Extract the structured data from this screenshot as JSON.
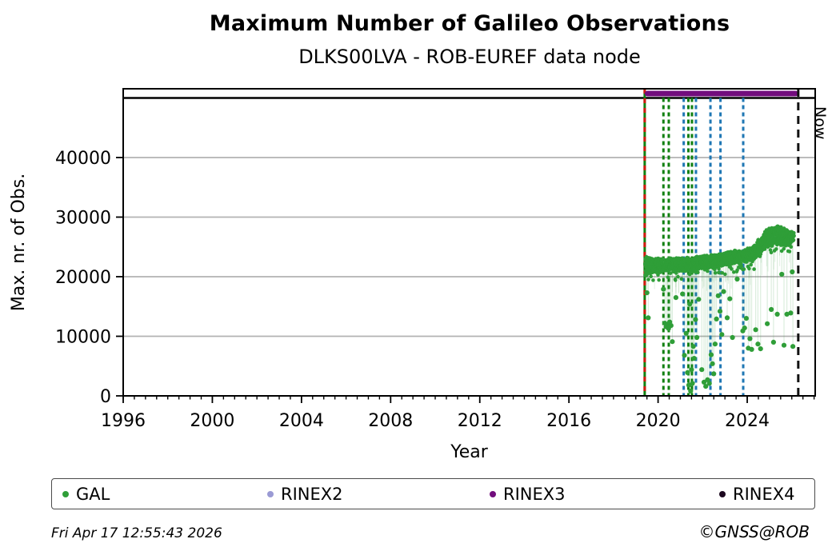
{
  "title": "Maximum Number of Galileo Observations",
  "subtitle": "DLKS00LVA - ROB-EUREF data node",
  "footer": {
    "generated": "Fri Apr 17 12:55:43 2026",
    "credit": "©GNSS@ROB"
  },
  "legend": [
    {
      "label": "GAL",
      "color": "#2f9e38"
    },
    {
      "label": "RINEX2",
      "color": "#9a9ad4"
    },
    {
      "label": "RINEX3",
      "color": "#720d7d"
    },
    {
      "label": "RINEX4",
      "color": "#1c081f"
    }
  ],
  "chart_data": {
    "type": "scatter",
    "title": "Maximum Number of Galileo Observations",
    "subtitle": "DLKS00LVA - ROB-EUREF data node",
    "xlabel": "Year",
    "ylabel": "Max. nr. of Obs.",
    "xlim": [
      1996,
      2027.05
    ],
    "ylim": [
      0,
      51540
    ],
    "xticks_major": [
      1996,
      2000,
      2004,
      2008,
      2012,
      2016,
      2020,
      2024
    ],
    "xtick_minor_step": 0.5,
    "yticks": [
      0,
      10000,
      20000,
      30000,
      40000
    ],
    "grid": true,
    "grid_color": "#b3b3b3",
    "top_line_value": 50000,
    "now": {
      "year": 2026.29,
      "label": "Now"
    },
    "rinex3_bar": {
      "start": 2019.4,
      "end": 2026.29,
      "color": "#720d7d"
    },
    "events": [
      {
        "year": 2019.4,
        "color": "#118011",
        "style": "solid",
        "from_top": true,
        "name": "gal-data-start-line"
      },
      {
        "year": 2019.4,
        "color": "#d1190f",
        "style": "dashed",
        "from_top": true,
        "dash": "6,6",
        "name": "rinex3-start-line"
      },
      {
        "year": 2020.24,
        "color": "#118011",
        "style": "dashed",
        "name": "event-green-1"
      },
      {
        "year": 2020.48,
        "color": "#118011",
        "style": "dashed",
        "name": "event-green-2"
      },
      {
        "year": 2021.15,
        "color": "#1f77b4",
        "style": "dashed",
        "name": "event-blue-1"
      },
      {
        "year": 2021.36,
        "color": "#118011",
        "style": "dashed",
        "name": "event-green-3"
      },
      {
        "year": 2021.52,
        "color": "#118011",
        "style": "dashed",
        "name": "event-green-4"
      },
      {
        "year": 2021.7,
        "color": "#1f77b4",
        "style": "dashed",
        "name": "event-blue-2"
      },
      {
        "year": 2022.35,
        "color": "#1f77b4",
        "style": "dashed",
        "name": "event-blue-3"
      },
      {
        "year": 2022.8,
        "color": "#1f77b4",
        "style": "dashed",
        "name": "event-blue-4"
      },
      {
        "year": 2023.82,
        "color": "#1f77b4",
        "style": "dashed",
        "name": "event-blue-5"
      }
    ],
    "series": [
      {
        "name": "GAL",
        "color": "#2f9e38"
      }
    ],
    "band_span": [
      2019.42,
      2026.1
    ],
    "band_envelope": [
      [
        2019.42,
        19900,
        23500
      ],
      [
        2019.55,
        20400,
        23200
      ],
      [
        2019.75,
        20700,
        23100
      ],
      [
        2020.0,
        20600,
        23200
      ],
      [
        2020.2,
        20800,
        23000
      ],
      [
        2020.35,
        21000,
        22900
      ],
      [
        2020.55,
        20900,
        23100
      ],
      [
        2020.8,
        20700,
        23200
      ],
      [
        2021.0,
        21000,
        23100
      ],
      [
        2021.25,
        20900,
        23200
      ],
      [
        2021.5,
        21000,
        23300
      ],
      [
        2021.75,
        21200,
        23400
      ],
      [
        2022.0,
        21300,
        23500
      ],
      [
        2022.25,
        21500,
        23600
      ],
      [
        2022.5,
        21400,
        23700
      ],
      [
        2022.75,
        21700,
        23800
      ],
      [
        2023.0,
        21900,
        24000
      ],
      [
        2023.25,
        22100,
        24200
      ],
      [
        2023.5,
        22300,
        24500
      ],
      [
        2023.7,
        22100,
        24300
      ],
      [
        2023.9,
        22400,
        24600
      ],
      [
        2024.1,
        22600,
        24900
      ],
      [
        2024.3,
        22700,
        25100
      ],
      [
        2024.5,
        23400,
        26300
      ],
      [
        2024.7,
        24200,
        27300
      ],
      [
        2024.9,
        24900,
        28000
      ],
      [
        2025.1,
        25300,
        28300
      ],
      [
        2025.3,
        25600,
        28600
      ],
      [
        2025.5,
        25400,
        28500
      ],
      [
        2025.7,
        25100,
        28100
      ],
      [
        2025.85,
        25300,
        27600
      ],
      [
        2026.0,
        25800,
        27600
      ],
      [
        2026.1,
        26200,
        27400
      ]
    ],
    "outliers": [
      [
        2019.5,
        17300
      ],
      [
        2019.56,
        13100
      ],
      [
        2020.24,
        17900
      ],
      [
        2020.3,
        12200
      ],
      [
        2020.36,
        11600
      ],
      [
        2020.42,
        12000
      ],
      [
        2020.47,
        11300
      ],
      [
        2020.52,
        12400
      ],
      [
        2020.58,
        11800
      ],
      [
        2020.64,
        9100
      ],
      [
        2020.8,
        16500
      ],
      [
        2021.1,
        17100
      ],
      [
        2021.18,
        6800
      ],
      [
        2021.26,
        10500
      ],
      [
        2021.32,
        3900
      ],
      [
        2021.38,
        1800
      ],
      [
        2021.42,
        15400
      ],
      [
        2021.46,
        800
      ],
      [
        2021.5,
        4400
      ],
      [
        2021.54,
        2100
      ],
      [
        2021.58,
        8300
      ],
      [
        2021.62,
        6300
      ],
      [
        2021.68,
        12800
      ],
      [
        2021.74,
        9800
      ],
      [
        2021.82,
        16200
      ],
      [
        2021.96,
        4400
      ],
      [
        2022.06,
        2300
      ],
      [
        2022.14,
        1600
      ],
      [
        2022.22,
        2700
      ],
      [
        2022.3,
        2100
      ],
      [
        2022.38,
        6900
      ],
      [
        2022.44,
        5400
      ],
      [
        2022.5,
        3700
      ],
      [
        2022.56,
        8700
      ],
      [
        2022.62,
        12900
      ],
      [
        2022.7,
        16800
      ],
      [
        2022.78,
        14200
      ],
      [
        2022.86,
        10300
      ],
      [
        2022.94,
        17500
      ],
      [
        2023.1,
        13100
      ],
      [
        2023.22,
        16300
      ],
      [
        2023.34,
        9800
      ],
      [
        2023.55,
        19600
      ],
      [
        2023.8,
        10900
      ],
      [
        2023.88,
        11400
      ],
      [
        2023.96,
        13000
      ],
      [
        2024.05,
        8000
      ],
      [
        2024.12,
        9600
      ],
      [
        2024.2,
        7800
      ],
      [
        2024.38,
        11100
      ],
      [
        2024.48,
        8700
      ],
      [
        2024.6,
        7900
      ],
      [
        2024.9,
        12100
      ],
      [
        2025.08,
        14500
      ],
      [
        2025.18,
        9000
      ],
      [
        2025.35,
        13700
      ],
      [
        2025.55,
        20400
      ],
      [
        2025.65,
        8500
      ],
      [
        2025.78,
        13700
      ],
      [
        2025.95,
        13900
      ],
      [
        2026.02,
        20800
      ],
      [
        2026.05,
        8300
      ]
    ]
  }
}
